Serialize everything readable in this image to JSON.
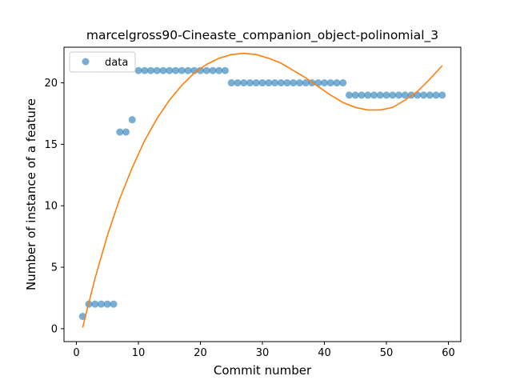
{
  "chart_data": {
    "type": "scatter",
    "title": "marcelgross90-Cineaste_companion_object-polinomial_3",
    "xlabel": "Commit number",
    "ylabel": "Number of instance of a feature",
    "xlim": [
      -2,
      62
    ],
    "ylim": [
      -1.05,
      22.9
    ],
    "xticks": [
      0,
      10,
      20,
      30,
      40,
      50,
      60
    ],
    "yticks": [
      0,
      5,
      10,
      15,
      20
    ],
    "grid": false,
    "legend": {
      "position": "top-left",
      "entries": [
        "data"
      ]
    },
    "colors": {
      "points": "#1f77b4",
      "fit": "#ff7f0e"
    },
    "series": [
      {
        "name": "data",
        "kind": "scatter",
        "x": [
          1,
          2,
          3,
          4,
          5,
          6,
          7,
          8,
          9,
          10,
          11,
          12,
          13,
          14,
          15,
          16,
          17,
          18,
          19,
          20,
          21,
          22,
          23,
          24,
          25,
          26,
          27,
          28,
          29,
          30,
          31,
          32,
          33,
          34,
          35,
          36,
          37,
          38,
          39,
          40,
          41,
          42,
          43,
          44,
          45,
          46,
          47,
          48,
          49,
          50,
          51,
          52,
          53,
          54,
          55,
          56,
          57,
          58,
          59
        ],
        "y": [
          1,
          2,
          2,
          2,
          2,
          2,
          16,
          16,
          17,
          21,
          21,
          21,
          21,
          21,
          21,
          21,
          21,
          21,
          21,
          21,
          21,
          21,
          21,
          21,
          20,
          20,
          20,
          20,
          20,
          20,
          20,
          20,
          20,
          20,
          20,
          20,
          20,
          20,
          20,
          20,
          20,
          20,
          20,
          19,
          19,
          19,
          19,
          19,
          19,
          19,
          19,
          19,
          19,
          19,
          19,
          19,
          19,
          19,
          19
        ]
      },
      {
        "kind": "line",
        "polynomial_degree": 3,
        "x": [
          1,
          3,
          5,
          7,
          9,
          11,
          13,
          15,
          17,
          19,
          21,
          23,
          25,
          27,
          29,
          31,
          33,
          35,
          37,
          39,
          41,
          43,
          45,
          47,
          49,
          51,
          53,
          55,
          57,
          59
        ],
        "y": [
          0.1,
          4.1,
          7.6,
          10.6,
          13.1,
          15.3,
          17.1,
          18.6,
          19.8,
          20.8,
          21.5,
          22.0,
          22.3,
          22.4,
          22.3,
          22.0,
          21.6,
          21.0,
          20.4,
          19.7,
          19.0,
          18.4,
          18.0,
          17.8,
          17.8,
          18.0,
          18.6,
          19.3,
          20.3,
          21.4
        ]
      }
    ]
  }
}
